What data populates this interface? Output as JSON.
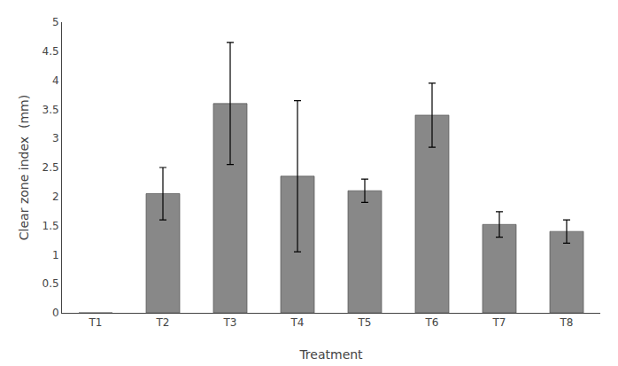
{
  "chart_data": {
    "type": "bar",
    "xlabel": "Treatment",
    "ylabel": "Clear zone index  (mm)",
    "categories": [
      "T1",
      "T2",
      "T3",
      "T4",
      "T5",
      "T6",
      "T7",
      "T8"
    ],
    "values": [
      0.0,
      2.05,
      3.6,
      2.35,
      2.1,
      3.4,
      1.52,
      1.4
    ],
    "errors": [
      0.0,
      0.45,
      1.05,
      1.3,
      0.2,
      0.55,
      0.22,
      0.2
    ],
    "color": "#888888",
    "ylim": [
      0,
      5
    ],
    "yticks": [
      0,
      0.5,
      1.0,
      1.5,
      2.0,
      2.5,
      3.0,
      3.5,
      4.0,
      4.5,
      5.0
    ],
    "grid": false
  }
}
